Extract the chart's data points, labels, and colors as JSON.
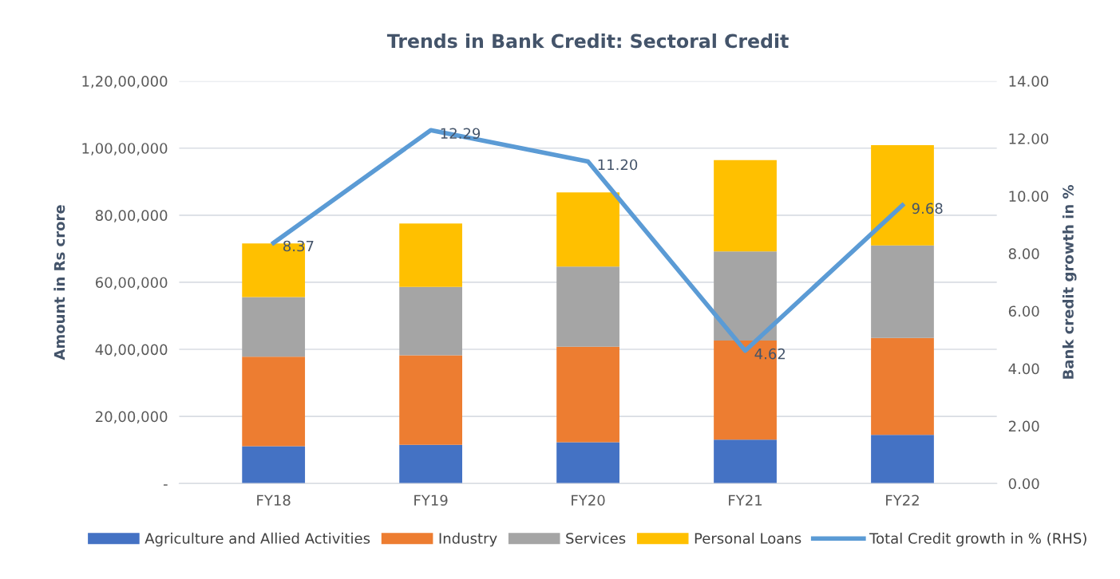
{
  "chart_data": {
    "type": "bar",
    "title": "Trends in Bank Credit: Sectoral Credit",
    "ylabel": "Amount in Rs crore",
    "y2label": "Bank credit growth in %",
    "categories": [
      "FY18",
      "FY19",
      "FY20",
      "FY21",
      "FY22"
    ],
    "stacked": true,
    "series": [
      {
        "name": "Agriculture and Allied Activities",
        "color": "#4472c4",
        "values": [
          1110000,
          1150000,
          1230000,
          1310000,
          1450000
        ]
      },
      {
        "name": "Industry",
        "color": "#ed7d31",
        "values": [
          2670000,
          2670000,
          2850000,
          2950000,
          2890000
        ]
      },
      {
        "name": "Services",
        "color": "#a5a5a5",
        "values": [
          1780000,
          2040000,
          2390000,
          2660000,
          2760000
        ]
      },
      {
        "name": "Personal Loans",
        "color": "#ffc000",
        "values": [
          1600000,
          1890000,
          2210000,
          2720000,
          2990000
        ]
      },
      {
        "name": "Total Credit growth in % (RHS)",
        "type": "line",
        "axis": "y2",
        "color": "#5b9bd5",
        "values": [
          8.37,
          12.29,
          11.2,
          4.62,
          9.68
        ],
        "value_labels": [
          "8.37",
          "12.29",
          "11.20",
          "4.62",
          "9.68"
        ]
      }
    ],
    "ylim": [
      0,
      12000000
    ],
    "yticks": [
      {
        "value": 0,
        "label": "-"
      },
      {
        "value": 2000000,
        "label": "20,00,000"
      },
      {
        "value": 4000000,
        "label": "40,00,000"
      },
      {
        "value": 6000000,
        "label": "60,00,000"
      },
      {
        "value": 8000000,
        "label": "80,00,000"
      },
      {
        "value": 10000000,
        "label": "1,00,00,000"
      },
      {
        "value": 12000000,
        "label": "1,20,00,000"
      }
    ],
    "y2lim": [
      0,
      14
    ],
    "y2ticks": [
      {
        "value": 0,
        "label": "0.00"
      },
      {
        "value": 2,
        "label": "2.00"
      },
      {
        "value": 4,
        "label": "4.00"
      },
      {
        "value": 6,
        "label": "6.00"
      },
      {
        "value": 8,
        "label": "8.00"
      },
      {
        "value": 10,
        "label": "10.00"
      },
      {
        "value": 12,
        "label": "12.00"
      },
      {
        "value": 14,
        "label": "14.00"
      }
    ],
    "grid": "y",
    "legend": "bottom"
  }
}
